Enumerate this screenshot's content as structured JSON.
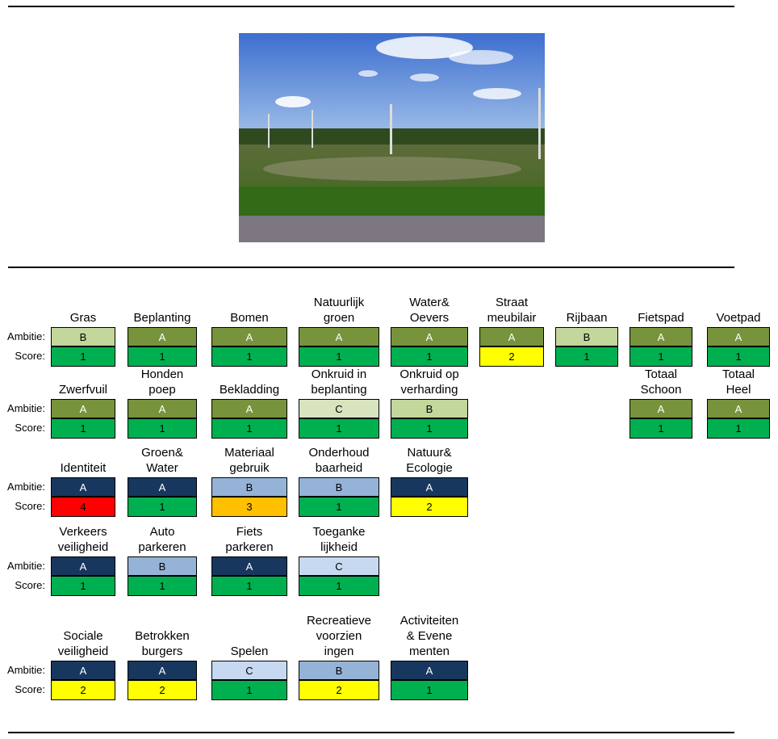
{
  "colors": {
    "amb_A_green": "#77933C",
    "amb_B_green": "#C3D69B",
    "amb_C_green": "#D7E4BD",
    "amb_A_navy": "#17375E",
    "amb_B_blue": "#95B3D7",
    "amb_C_blue": "#C6D9F1",
    "score_1": "#00B050",
    "score_2": "#FFFF00",
    "score_3": "#FFC000",
    "score_4": "#FF0000"
  },
  "photo": {
    "icon": "photo-field-landscape"
  },
  "labels": {
    "ambitie": "Ambitie:",
    "score": "Score:"
  },
  "rows": [
    {
      "items": [
        {
          "label": "Gras",
          "ambitie": "B",
          "amb_color": "#C3D69B",
          "score": "1",
          "score_color": "#00B050"
        },
        {
          "label": "Beplanting",
          "ambitie": "A",
          "amb_color": "#77933C",
          "score": "1",
          "score_color": "#00B050"
        },
        {
          "label": "Bomen",
          "ambitie": "A",
          "amb_color": "#77933C",
          "score": "1",
          "score_color": "#00B050"
        },
        {
          "label": "Natuurlijk\ngroen",
          "ambitie": "A",
          "amb_color": "#77933C",
          "score": "1",
          "score_color": "#00B050"
        },
        {
          "label": "Water&\nOevers",
          "ambitie": "A",
          "amb_color": "#77933C",
          "score": "1",
          "score_color": "#00B050"
        },
        {
          "label": "Straat\nmeubilair",
          "ambitie": "A",
          "amb_color": "#77933C",
          "score": "2",
          "score_color": "#FFFF00"
        },
        {
          "label": "Rijbaan",
          "ambitie": "B",
          "amb_color": "#C3D69B",
          "score": "1",
          "score_color": "#00B050"
        },
        {
          "label": "Fietspad",
          "ambitie": "A",
          "amb_color": "#77933C",
          "score": "1",
          "score_color": "#00B050"
        },
        {
          "label": "Voetpad",
          "ambitie": "A",
          "amb_color": "#77933C",
          "score": "1",
          "score_color": "#00B050"
        }
      ]
    },
    {
      "items": [
        {
          "label": "Zwerfvuil",
          "ambitie": "A",
          "amb_color": "#77933C",
          "score": "1",
          "score_color": "#00B050"
        },
        {
          "label": "Honden\npoep",
          "ambitie": "A",
          "amb_color": "#77933C",
          "score": "1",
          "score_color": "#00B050"
        },
        {
          "label": "Bekladding",
          "ambitie": "A",
          "amb_color": "#77933C",
          "score": "1",
          "score_color": "#00B050"
        },
        {
          "label": "Onkruid in\nbeplanting",
          "ambitie": "C",
          "amb_color": "#D7E4BD",
          "score": "1",
          "score_color": "#00B050"
        },
        {
          "label": "Onkruid op\nverharding",
          "ambitie": "B",
          "amb_color": "#C3D69B",
          "score": "1",
          "score_color": "#00B050"
        },
        {
          "label": "Totaal\nSchoon",
          "ambitie": "A",
          "amb_color": "#77933C",
          "score": "1",
          "score_color": "#00B050"
        },
        {
          "label": "Totaal\nHeel",
          "ambitie": "A",
          "amb_color": "#77933C",
          "score": "1",
          "score_color": "#00B050"
        }
      ]
    },
    {
      "items": [
        {
          "label": "Identiteit",
          "ambitie": "A",
          "amb_color": "#17375E",
          "score": "4",
          "score_color": "#FF0000"
        },
        {
          "label": "Groen&\nWater",
          "ambitie": "A",
          "amb_color": "#17375E",
          "score": "1",
          "score_color": "#00B050"
        },
        {
          "label": "Materiaal\ngebruik",
          "ambitie": "B",
          "amb_color": "#95B3D7",
          "score": "3",
          "score_color": "#FFC000"
        },
        {
          "label": "Onderhoud\nbaarheid",
          "ambitie": "B",
          "amb_color": "#95B3D7",
          "score": "1",
          "score_color": "#00B050"
        },
        {
          "label": "Natuur&\nEcologie",
          "ambitie": "A",
          "amb_color": "#17375E",
          "score": "2",
          "score_color": "#FFFF00"
        }
      ]
    },
    {
      "items": [
        {
          "label": "Verkeers\nveiligheid",
          "ambitie": "A",
          "amb_color": "#17375E",
          "score": "1",
          "score_color": "#00B050"
        },
        {
          "label": "Auto\nparkeren",
          "ambitie": "B",
          "amb_color": "#95B3D7",
          "score": "1",
          "score_color": "#00B050"
        },
        {
          "label": "Fiets\nparkeren",
          "ambitie": "A",
          "amb_color": "#17375E",
          "score": "1",
          "score_color": "#00B050"
        },
        {
          "label": "Toeganke\nlijkheid",
          "ambitie": "C",
          "amb_color": "#C6D9F1",
          "score": "1",
          "score_color": "#00B050"
        }
      ]
    },
    {
      "items": [
        {
          "label": "Sociale\nveiligheid",
          "ambitie": "A",
          "amb_color": "#17375E",
          "score": "2",
          "score_color": "#FFFF00"
        },
        {
          "label": "Betrokken\nburgers",
          "ambitie": "A",
          "amb_color": "#17375E",
          "score": "2",
          "score_color": "#FFFF00"
        },
        {
          "label": "Spelen",
          "ambitie": "C",
          "amb_color": "#C6D9F1",
          "score": "1",
          "score_color": "#00B050"
        },
        {
          "label": "Recreatieve\nvoorzien\ningen",
          "ambitie": "B",
          "amb_color": "#95B3D7",
          "score": "2",
          "score_color": "#FFFF00"
        },
        {
          "label": "Activiteiten\n& Evene\nmenten",
          "ambitie": "A",
          "amb_color": "#17375E",
          "score": "1",
          "score_color": "#00B050"
        }
      ]
    }
  ]
}
